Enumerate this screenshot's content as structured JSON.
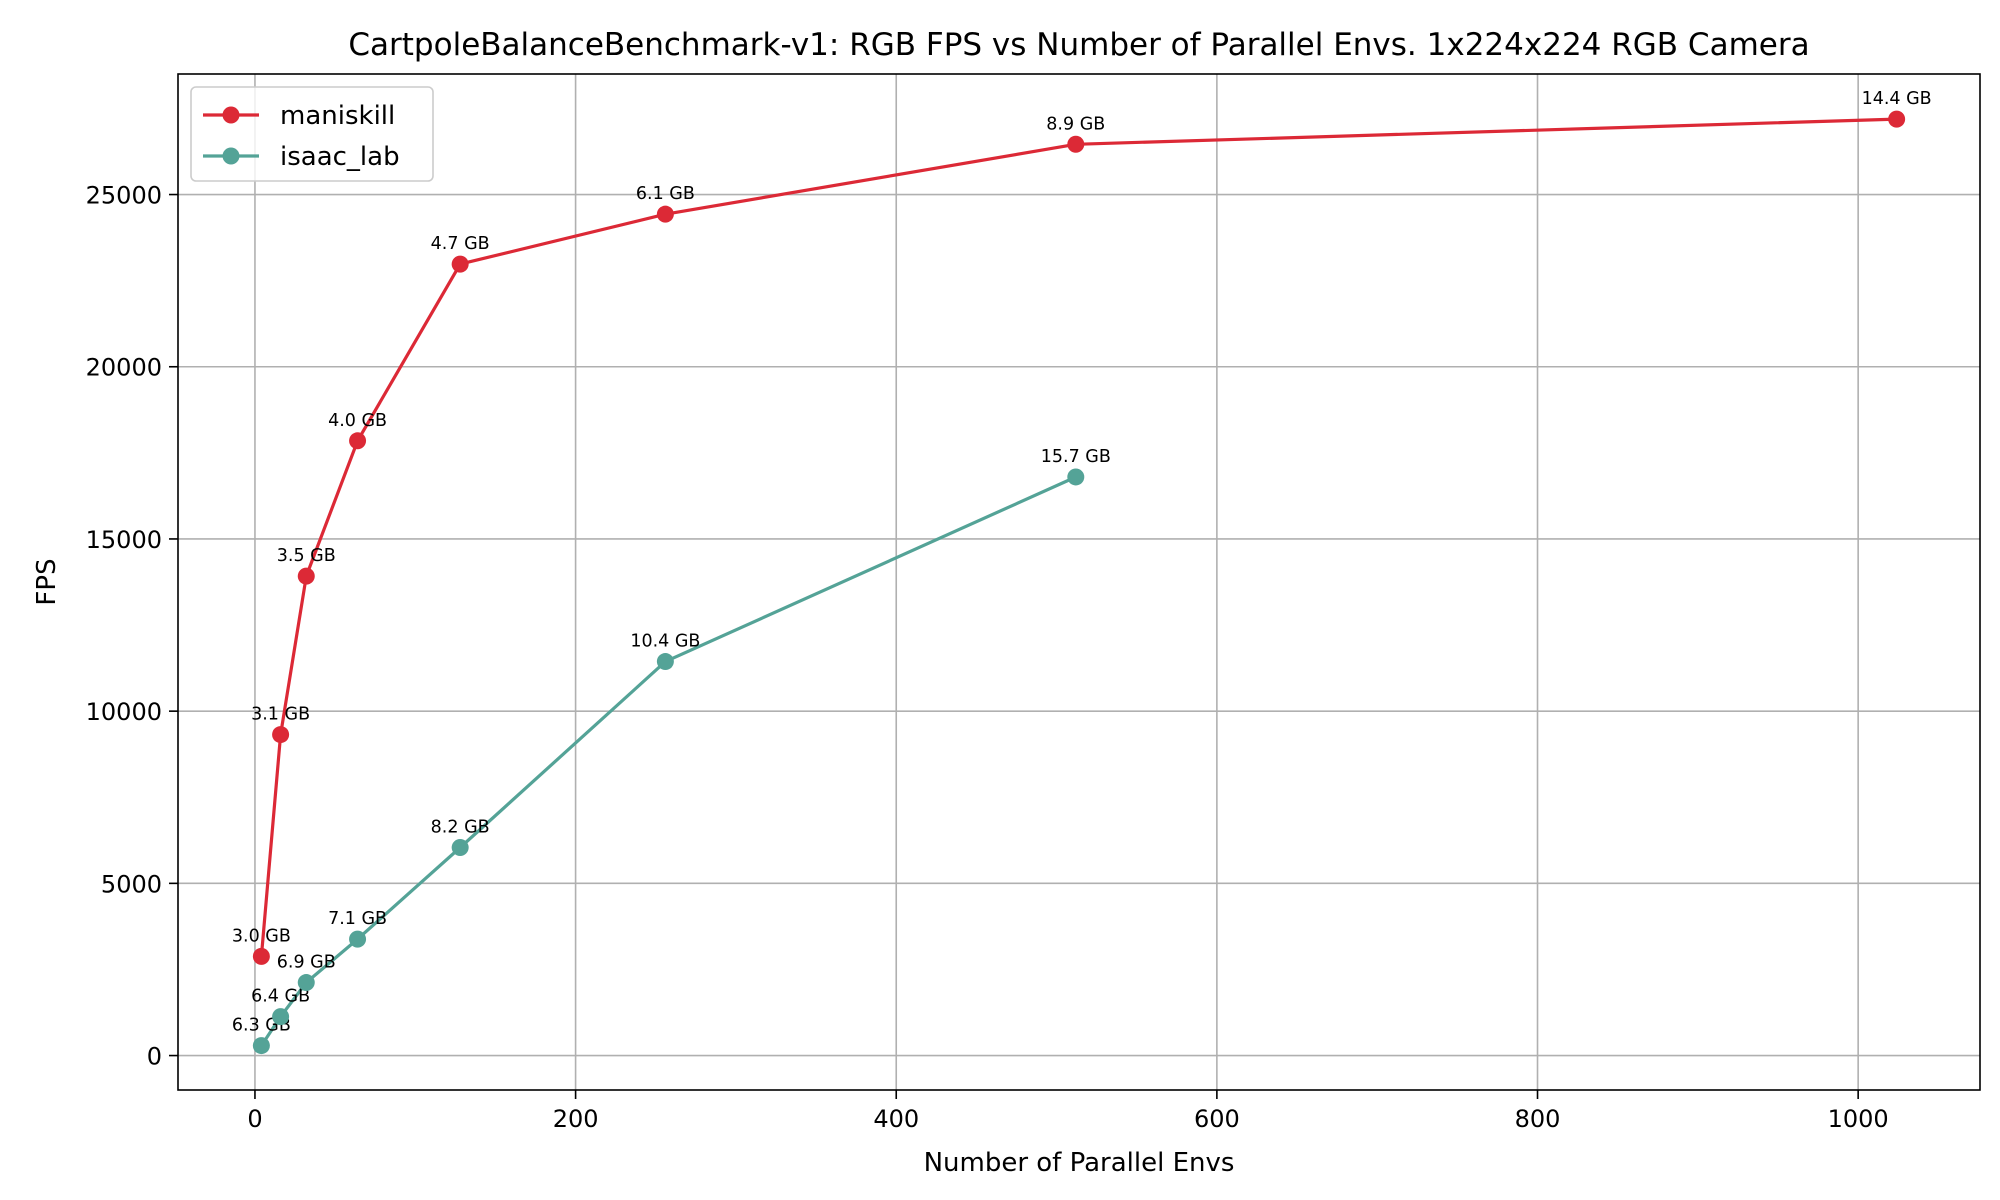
{
  "chart_data": {
    "type": "line",
    "title": "CartpoleBalanceBenchmark-v1: RGB FPS vs Number of Parallel Envs. 1x224x224 RGB Camera",
    "xlabel": "Number of Parallel Envs",
    "ylabel": "FPS",
    "xlim": [
      -48,
      1076
    ],
    "ylim": [
      -1000,
      28500
    ],
    "xticks": [
      0,
      200,
      400,
      600,
      800,
      1000
    ],
    "yticks": [
      0,
      5000,
      10000,
      15000,
      20000,
      25000
    ],
    "grid": true,
    "legend_position": "top-left",
    "series": [
      {
        "name": "maniskill",
        "color": "#dc2936",
        "x": [
          4,
          16,
          32,
          64,
          128,
          256,
          512,
          1024
        ],
        "y": [
          2880,
          9320,
          13920,
          17850,
          22980,
          24430,
          26460,
          27190
        ],
        "labels": [
          "3.0 GB",
          "3.1 GB",
          "3.5 GB",
          "4.0 GB",
          "4.7 GB",
          "6.1 GB",
          "8.9 GB",
          "14.4 GB"
        ]
      },
      {
        "name": "isaac_lab",
        "color": "#54a397",
        "x": [
          4,
          16,
          32,
          64,
          128,
          256,
          512
        ],
        "y": [
          290,
          1130,
          2120,
          3380,
          6040,
          11440,
          16800
        ],
        "labels": [
          "6.3 GB",
          "6.4 GB",
          "6.9 GB",
          "7.1 GB",
          "8.2 GB",
          "10.4 GB",
          "15.7 GB"
        ]
      }
    ]
  }
}
